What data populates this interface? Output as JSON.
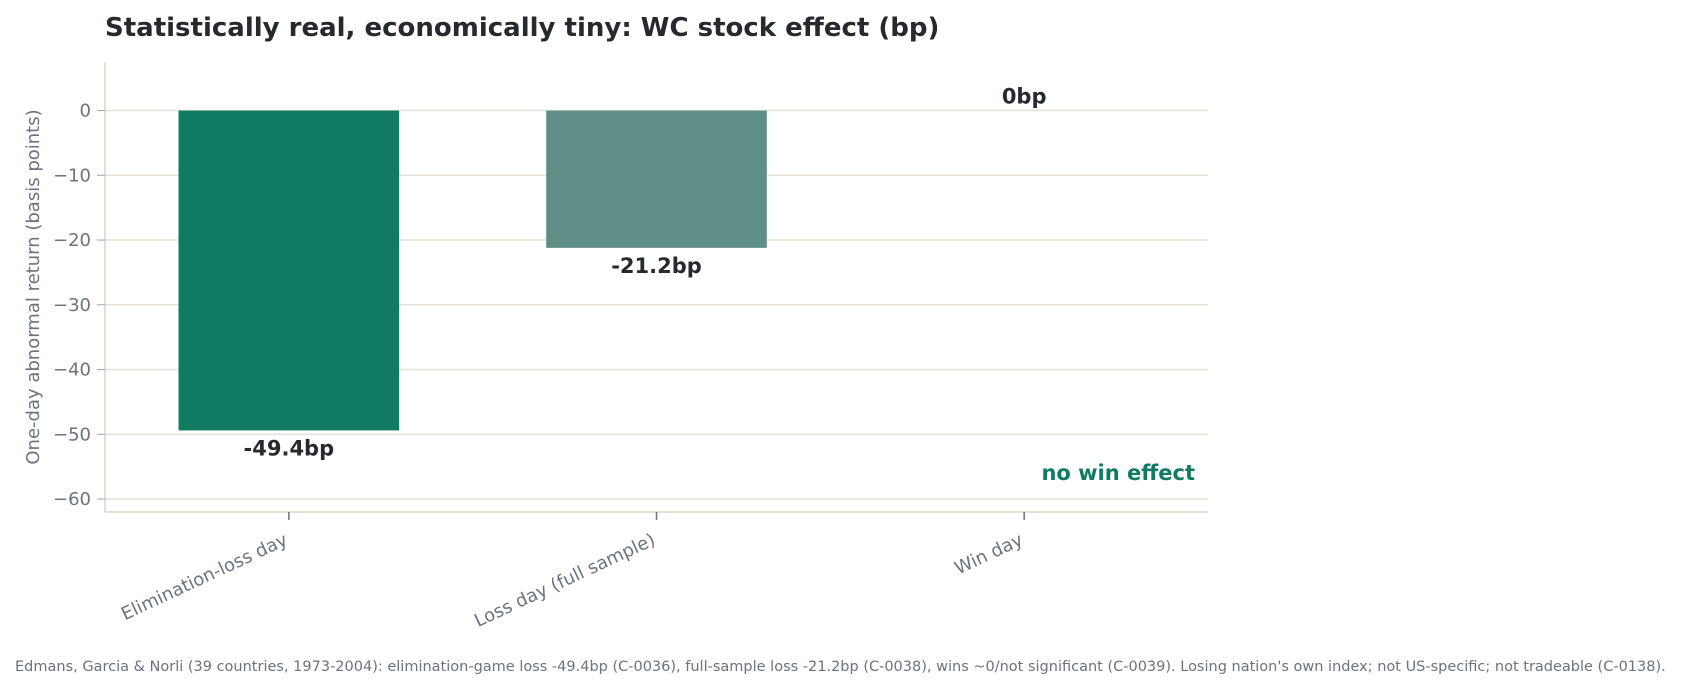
{
  "chart_data": {
    "type": "bar",
    "title": "Statistically real, economically tiny: WC stock effect (bp)",
    "ylabel": "One-day abnormal return (basis points)",
    "xlabel": "",
    "categories": [
      "Elimination-loss day",
      "Loss day (full sample)",
      "Win day"
    ],
    "values": [
      -49.4,
      -21.2,
      0
    ],
    "data_labels": [
      "-49.4bp",
      "-21.2bp",
      "0bp"
    ],
    "bar_colors": [
      "#117a62",
      "#5e8e85",
      "#117a62"
    ],
    "ylim": [
      -62,
      7.5
    ],
    "yticks": [
      0,
      -10,
      -20,
      -30,
      -40,
      -50,
      -60
    ],
    "ytick_labels": [
      "0",
      "−10",
      "−20",
      "−30",
      "−40",
      "−50",
      "−60"
    ],
    "grid": true,
    "annotation": {
      "text": "no win effect",
      "color": "#117a62"
    },
    "footnote": "Edmans, Garcia & Norli (39 countries, 1973-2004): elimination-game loss -49.4bp (C-0036), full-sample loss -21.2bp (C-0038), wins ~0/not significant (C-0039). Losing nation's own index; not US-specific; not tradeable (C-0138)."
  }
}
